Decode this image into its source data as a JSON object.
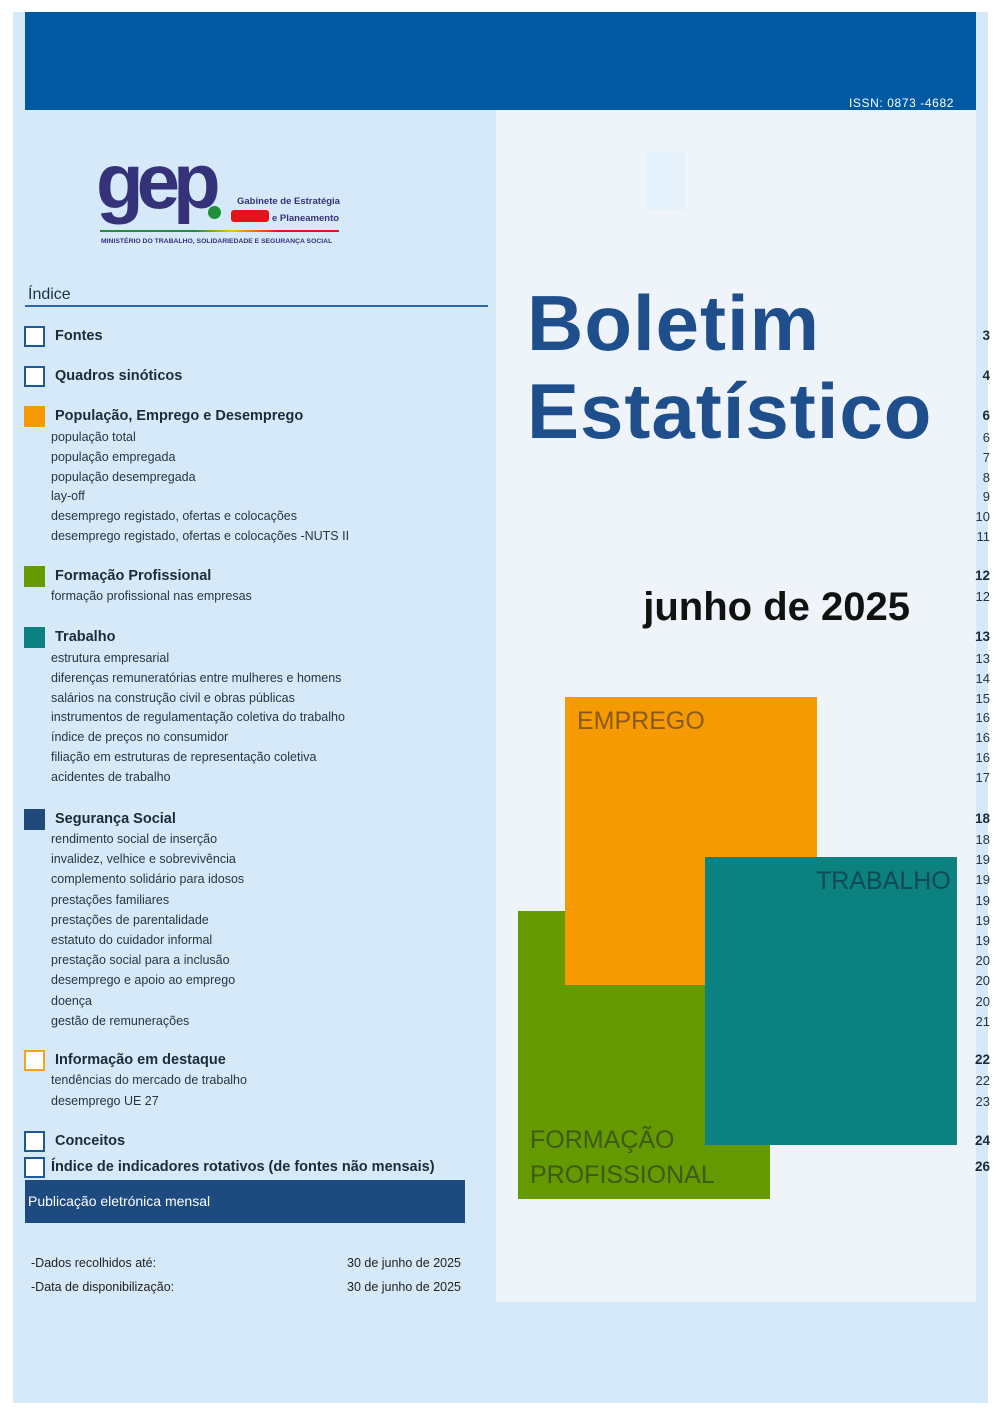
{
  "header": {
    "issn": "ISSN: 0873 -4682"
  },
  "logo": {
    "wordmark": "gep",
    "line1": "Gabinete de Estratégia",
    "line2": "e Planeamento",
    "ministry": "MINISTÉRIO DO TRABALHO, SOLIDARIEDADE E SEGURANÇA SOCIAL"
  },
  "index": {
    "title": "Índice",
    "sections": [
      {
        "title": "Fontes",
        "page": "3",
        "color": "hollow",
        "items": []
      },
      {
        "title": "Quadros sinóticos",
        "page": "4",
        "color": "hollow",
        "items": []
      },
      {
        "title": "População, Emprego e Desemprego",
        "page": "6",
        "color": "#f59a00",
        "items": [
          {
            "label": "população total",
            "page": "6"
          },
          {
            "label": "população empregada",
            "page": "7"
          },
          {
            "label": "população desempregada",
            "page": "8"
          },
          {
            "label": "lay-off",
            "page": "9"
          },
          {
            "label": "desemprego registado, ofertas e colocações",
            "page": "10"
          },
          {
            "label": "desemprego registado, ofertas e colocações -NUTS II",
            "page": "11"
          }
        ]
      },
      {
        "title": "Formação Profissional",
        "page": "12",
        "color": "#659900",
        "items": [
          {
            "label": "formação profissional nas empresas",
            "page": "12"
          }
        ]
      },
      {
        "title": "Trabalho",
        "page": "13",
        "color": "#0b8180",
        "items": [
          {
            "label": "estrutura empresarial",
            "page": "13"
          },
          {
            "label": "diferenças remuneratórias entre mulheres e homens",
            "page": "14"
          },
          {
            "label": "salários na construção civil e obras públicas",
            "page": "15"
          },
          {
            "label": "instrumentos de regulamentação coletiva do trabalho",
            "page": "16"
          },
          {
            "label": "índice de preços no consumidor",
            "page": "16"
          },
          {
            "label": "filiação em estruturas de representação coletiva",
            "page": "16"
          },
          {
            "label": "acidentes de trabalho",
            "page": "17"
          }
        ]
      },
      {
        "title": "Segurança Social",
        "page": "18",
        "color": "#1f4a7a",
        "items": [
          {
            "label": "rendimento social de inserção",
            "page": "18"
          },
          {
            "label": "invalidez, velhice e sobrevivência",
            "page": "19"
          },
          {
            "label": "complemento solidário para idosos",
            "page": "19"
          },
          {
            "label": "prestações familiares",
            "page": "19"
          },
          {
            "label": "prestações de parentalidade",
            "page": "19"
          },
          {
            "label": "estatuto do cuidador informal",
            "page": "19"
          },
          {
            "label": "prestação social para a inclusão",
            "page": "20"
          },
          {
            "label": "desemprego e apoio ao emprego",
            "page": "20"
          },
          {
            "label": "doença",
            "page": "20"
          },
          {
            "label": "gestão de remunerações",
            "page": "21"
          }
        ]
      },
      {
        "title": "Informação em destaque",
        "page": "22",
        "color": "hollow-orange",
        "items": [
          {
            "label": "tendências do mercado de trabalho",
            "page": "22"
          },
          {
            "label": "desemprego UE 27",
            "page": "23"
          }
        ]
      },
      {
        "title": "Conceitos",
        "page": "24",
        "color": "hollow",
        "items": []
      },
      {
        "title": "Índice de indicadores rotativos (de fontes não mensais)",
        "page": "26",
        "color": "hollow",
        "items": []
      }
    ]
  },
  "publication": {
    "label": "Publicação eletrónica mensal",
    "collected_label": "-Dados recolhidos até:",
    "collected_value": "30 de junho de 2025",
    "available_label": "-Data de disponibilização:",
    "available_value": "30 de junho de 2025"
  },
  "cover": {
    "title_line1": "Boletim",
    "title_line2": "Estatístico",
    "month": "junho de 2025",
    "blocks": {
      "emprego": "EMPREGO",
      "trabalho": "TRABALHO",
      "formacao_1": "FORMAÇÃO",
      "formacao_2": "PROFISSIONAL"
    }
  },
  "colors": {
    "brand_blue": "#0159a2",
    "orange": "#f59a00",
    "green": "#659900",
    "teal": "#0b8180",
    "navy": "#1f4a7a"
  }
}
